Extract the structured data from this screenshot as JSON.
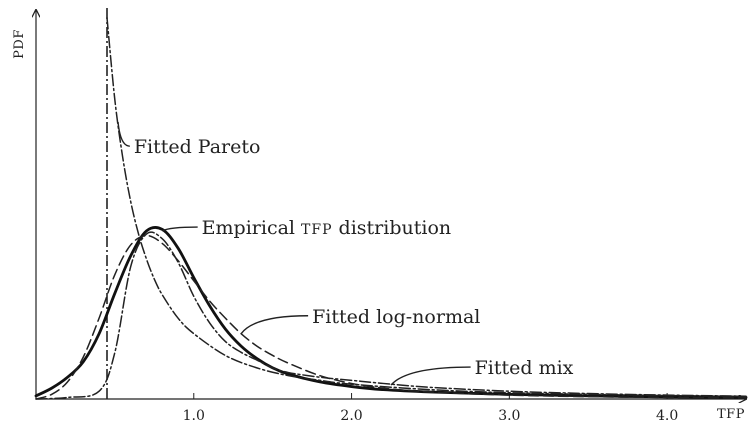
{
  "chart_data": {
    "type": "line",
    "title": "",
    "xlabel": "TFP",
    "ylabel": "PDF",
    "xlim": [
      0.0,
      4.5
    ],
    "ylim": [
      0.0,
      2.5
    ],
    "xticks": [
      {
        "value": 1.0,
        "label": "1.0"
      },
      {
        "value": 2.0,
        "label": "2.0"
      },
      {
        "value": 3.0,
        "label": "3.0"
      },
      {
        "value": 4.0,
        "label": "4.0"
      }
    ],
    "grid": false,
    "legend": "none",
    "pareto_threshold": 0.45,
    "series": [
      {
        "id": "empirical",
        "style": "solid-thick",
        "color": "#111111",
        "x": [
          0.0,
          0.1,
          0.2,
          0.3,
          0.4,
          0.5,
          0.6,
          0.7,
          0.8,
          0.9,
          1.0,
          1.1,
          1.2,
          1.3,
          1.4,
          1.5,
          1.6,
          1.8,
          2.0,
          2.2,
          2.5,
          3.0,
          3.5,
          4.0,
          4.5
        ],
        "y": [
          0.02,
          0.07,
          0.14,
          0.24,
          0.42,
          0.68,
          0.92,
          1.08,
          1.09,
          0.97,
          0.78,
          0.6,
          0.45,
          0.34,
          0.26,
          0.2,
          0.16,
          0.11,
          0.08,
          0.06,
          0.045,
          0.03,
          0.02,
          0.014,
          0.01
        ]
      },
      {
        "id": "log-normal",
        "style": "dashed",
        "color": "#222222",
        "x": [
          0.0,
          0.1,
          0.2,
          0.3,
          0.4,
          0.5,
          0.6,
          0.7,
          0.8,
          0.9,
          1.0,
          1.1,
          1.2,
          1.3,
          1.4,
          1.5,
          1.6,
          1.8,
          2.0,
          2.2,
          2.5,
          3.0,
          3.5,
          4.0,
          4.5
        ],
        "y": [
          0.0,
          0.03,
          0.11,
          0.27,
          0.52,
          0.8,
          0.99,
          1.05,
          1.0,
          0.89,
          0.76,
          0.63,
          0.52,
          0.42,
          0.34,
          0.28,
          0.23,
          0.15,
          0.1,
          0.07,
          0.045,
          0.025,
          0.015,
          0.01,
          0.007
        ]
      },
      {
        "id": "mix",
        "style": "dash-dot",
        "color": "#222222",
        "x": [
          0.0,
          0.2,
          0.4,
          0.5,
          0.6,
          0.7,
          0.8,
          0.9,
          1.0,
          1.1,
          1.2,
          1.3,
          1.4,
          1.5,
          1.6,
          1.8,
          2.0,
          2.2,
          2.5,
          3.0,
          3.5,
          4.0,
          4.5
        ],
        "y": [
          0.0,
          0.01,
          0.05,
          0.3,
          0.85,
          1.06,
          1.03,
          0.88,
          0.66,
          0.49,
          0.37,
          0.3,
          0.25,
          0.2,
          0.17,
          0.14,
          0.12,
          0.1,
          0.075,
          0.05,
          0.035,
          0.025,
          0.018
        ]
      },
      {
        "id": "pareto",
        "style": "dash-dot",
        "color": "#222222",
        "x": [
          0.45,
          0.5,
          0.55,
          0.6,
          0.65,
          0.7,
          0.75,
          0.8,
          0.9,
          1.0,
          1.2,
          1.4,
          1.6,
          1.8,
          2.0,
          2.5,
          3.0,
          3.5,
          4.0,
          4.5
        ],
        "y": [
          2.45,
          1.92,
          1.55,
          1.27,
          1.06,
          0.9,
          0.77,
          0.67,
          0.52,
          0.42,
          0.28,
          0.2,
          0.15,
          0.12,
          0.095,
          0.06,
          0.04,
          0.03,
          0.022,
          0.017
        ]
      }
    ],
    "annotations": [
      {
        "id": "pareto",
        "text": "Fitted Pareto",
        "x": 0.62,
        "y": 1.58,
        "point": [
          0.52,
          1.78
        ]
      },
      {
        "id": "empirical",
        "pre": "Empirical ",
        "sc": "TFP",
        "post": " distribution",
        "x": 1.05,
        "y": 1.06,
        "point": [
          0.8,
          1.08
        ]
      },
      {
        "id": "lognormal",
        "text": "Fitted log-normal",
        "x": 1.75,
        "y": 0.49,
        "point": [
          1.3,
          0.42
        ]
      },
      {
        "id": "mix",
        "text": "Fitted mix",
        "x": 2.78,
        "y": 0.16,
        "point": [
          2.25,
          0.09
        ]
      }
    ]
  }
}
